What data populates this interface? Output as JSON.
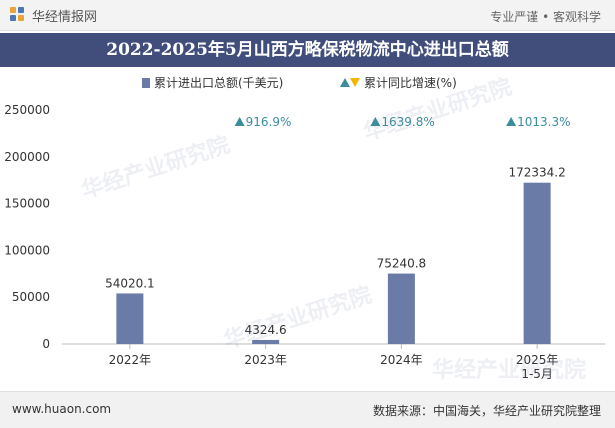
{
  "header": {
    "brand": "华经情报网",
    "slogan": "专业严谨 • 客观科学"
  },
  "title": "2022-2025年5月山西方略保税物流中心进出口总额",
  "legend": {
    "bar_label": "累计进出口总额(千美元)",
    "growth_label": "累计同比增速(%)"
  },
  "footer": {
    "url": "www.huaon.com",
    "source": "数据来源：中国海关，华经产业研究院整理"
  },
  "watermark": "华经产业研究院",
  "colors": {
    "bar": "#6b7ba8",
    "growth_text": "#3a8d9c",
    "title_bg": "#414e7c"
  },
  "chart_data": {
    "type": "bar",
    "categories": [
      "2022年",
      "2023年",
      "2024年",
      "2025年\n1-5月"
    ],
    "series": [
      {
        "name": "累计进出口总额(千美元)",
        "values": [
          54020.1,
          4324.6,
          75240.8,
          172334.2
        ]
      },
      {
        "name": "累计同比增速(%)",
        "values": [
          null,
          916.9,
          1639.8,
          1013.3
        ]
      }
    ],
    "value_labels": [
      "54020.1",
      "4324.6",
      "75240.8",
      "172334.2"
    ],
    "growth_labels": [
      "",
      "916.9%",
      "1639.8%",
      "1013.3%"
    ],
    "yticks": [
      "0",
      "50000",
      "100000",
      "150000",
      "200000",
      "250000"
    ],
    "ylim": [
      0,
      250000
    ],
    "grid": false,
    "legend_position": "top"
  }
}
